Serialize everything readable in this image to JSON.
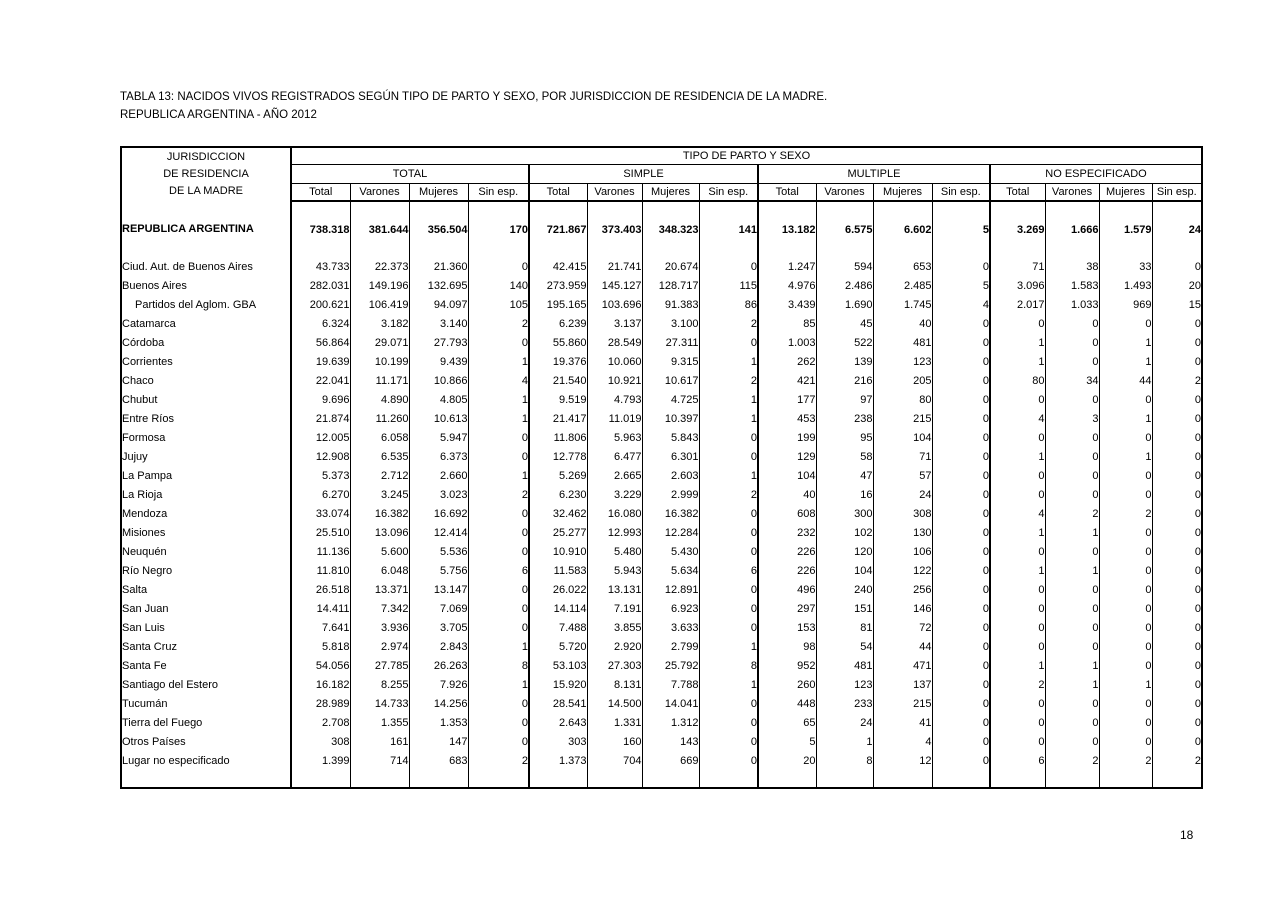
{
  "title": {
    "line1": "TABLA 13: NACIDOS VIVOS REGISTRADOS SEGÚN TIPO DE PARTO Y SEXO, POR JURISDICCION  DE RESIDENCIA DE LA MADRE.",
    "line2": "REPUBLICA ARGENTINA  -  AÑO 2012"
  },
  "page_number": "18",
  "table": {
    "row_header": {
      "lines": [
        "JURISDICCION",
        "DE RESIDENCIA",
        "DE LA MADRE"
      ]
    },
    "col_header": "TIPO DE PARTO Y SEXO",
    "groups": [
      "TOTAL",
      "SIMPLE",
      "MULTIPLE",
      "NO ESPECIFICADO"
    ],
    "subcolumns": [
      "Total",
      "Varones",
      "Mujeres",
      "Sin esp."
    ],
    "total_row": {
      "name": "REPUBLICA ARGENTINA",
      "values": [
        "738.318",
        "381.644",
        "356.504",
        "170",
        "721.867",
        "373.403",
        "348.323",
        "141",
        "13.182",
        "6.575",
        "6.602",
        "5",
        "3.269",
        "1.666",
        "1.579",
        "24"
      ]
    },
    "rows": [
      {
        "name": "Ciud. Aut. de  Buenos Aires",
        "indent": false,
        "values": [
          "43.733",
          "22.373",
          "21.360",
          "0",
          "42.415",
          "21.741",
          "20.674",
          "0",
          "1.247",
          "594",
          "653",
          "0",
          "71",
          "38",
          "33",
          "0"
        ]
      },
      {
        "name": "Buenos Aires",
        "indent": false,
        "values": [
          "282.031",
          "149.196",
          "132.695",
          "140",
          "273.959",
          "145.127",
          "128.717",
          "115",
          "4.976",
          "2.486",
          "2.485",
          "5",
          "3.096",
          "1.583",
          "1.493",
          "20"
        ]
      },
      {
        "name": "Partidos del Aglom. GBA",
        "indent": true,
        "values": [
          "200.621",
          "106.419",
          "94.097",
          "105",
          "195.165",
          "103.696",
          "91.383",
          "86",
          "3.439",
          "1.690",
          "1.745",
          "4",
          "2.017",
          "1.033",
          "969",
          "15"
        ]
      },
      {
        "name": "Catamarca",
        "indent": false,
        "values": [
          "6.324",
          "3.182",
          "3.140",
          "2",
          "6.239",
          "3.137",
          "3.100",
          "2",
          "85",
          "45",
          "40",
          "0",
          "0",
          "0",
          "0",
          "0"
        ]
      },
      {
        "name": "Córdoba",
        "indent": false,
        "values": [
          "56.864",
          "29.071",
          "27.793",
          "0",
          "55.860",
          "28.549",
          "27.311",
          "0",
          "1.003",
          "522",
          "481",
          "0",
          "1",
          "0",
          "1",
          "0"
        ]
      },
      {
        "name": "Corrientes",
        "indent": false,
        "values": [
          "19.639",
          "10.199",
          "9.439",
          "1",
          "19.376",
          "10.060",
          "9.315",
          "1",
          "262",
          "139",
          "123",
          "0",
          "1",
          "0",
          "1",
          "0"
        ]
      },
      {
        "name": "Chaco",
        "indent": false,
        "values": [
          "22.041",
          "11.171",
          "10.866",
          "4",
          "21.540",
          "10.921",
          "10.617",
          "2",
          "421",
          "216",
          "205",
          "0",
          "80",
          "34",
          "44",
          "2"
        ]
      },
      {
        "name": "Chubut",
        "indent": false,
        "values": [
          "9.696",
          "4.890",
          "4.805",
          "1",
          "9.519",
          "4.793",
          "4.725",
          "1",
          "177",
          "97",
          "80",
          "0",
          "0",
          "0",
          "0",
          "0"
        ]
      },
      {
        "name": "Entre Ríos",
        "indent": false,
        "values": [
          "21.874",
          "11.260",
          "10.613",
          "1",
          "21.417",
          "11.019",
          "10.397",
          "1",
          "453",
          "238",
          "215",
          "0",
          "4",
          "3",
          "1",
          "0"
        ]
      },
      {
        "name": "Formosa",
        "indent": false,
        "values": [
          "12.005",
          "6.058",
          "5.947",
          "0",
          "11.806",
          "5.963",
          "5.843",
          "0",
          "199",
          "95",
          "104",
          "0",
          "0",
          "0",
          "0",
          "0"
        ]
      },
      {
        "name": "Jujuy",
        "indent": false,
        "values": [
          "12.908",
          "6.535",
          "6.373",
          "0",
          "12.778",
          "6.477",
          "6.301",
          "0",
          "129",
          "58",
          "71",
          "0",
          "1",
          "0",
          "1",
          "0"
        ]
      },
      {
        "name": "La Pampa",
        "indent": false,
        "values": [
          "5.373",
          "2.712",
          "2.660",
          "1",
          "5.269",
          "2.665",
          "2.603",
          "1",
          "104",
          "47",
          "57",
          "0",
          "0",
          "0",
          "0",
          "0"
        ]
      },
      {
        "name": "La Rioja",
        "indent": false,
        "values": [
          "6.270",
          "3.245",
          "3.023",
          "2",
          "6.230",
          "3.229",
          "2.999",
          "2",
          "40",
          "16",
          "24",
          "0",
          "0",
          "0",
          "0",
          "0"
        ]
      },
      {
        "name": "Mendoza",
        "indent": false,
        "values": [
          "33.074",
          "16.382",
          "16.692",
          "0",
          "32.462",
          "16.080",
          "16.382",
          "0",
          "608",
          "300",
          "308",
          "0",
          "4",
          "2",
          "2",
          "0"
        ]
      },
      {
        "name": "Misiones",
        "indent": false,
        "values": [
          "25.510",
          "13.096",
          "12.414",
          "0",
          "25.277",
          "12.993",
          "12.284",
          "0",
          "232",
          "102",
          "130",
          "0",
          "1",
          "1",
          "0",
          "0"
        ]
      },
      {
        "name": "Neuquén",
        "indent": false,
        "values": [
          "11.136",
          "5.600",
          "5.536",
          "0",
          "10.910",
          "5.480",
          "5.430",
          "0",
          "226",
          "120",
          "106",
          "0",
          "0",
          "0",
          "0",
          "0"
        ]
      },
      {
        "name": "Río Negro",
        "indent": false,
        "values": [
          "11.810",
          "6.048",
          "5.756",
          "6",
          "11.583",
          "5.943",
          "5.634",
          "6",
          "226",
          "104",
          "122",
          "0",
          "1",
          "1",
          "0",
          "0"
        ]
      },
      {
        "name": "Salta",
        "indent": false,
        "values": [
          "26.518",
          "13.371",
          "13.147",
          "0",
          "26.022",
          "13.131",
          "12.891",
          "0",
          "496",
          "240",
          "256",
          "0",
          "0",
          "0",
          "0",
          "0"
        ]
      },
      {
        "name": "San Juan",
        "indent": false,
        "values": [
          "14.411",
          "7.342",
          "7.069",
          "0",
          "14.114",
          "7.191",
          "6.923",
          "0",
          "297",
          "151",
          "146",
          "0",
          "0",
          "0",
          "0",
          "0"
        ]
      },
      {
        "name": "San Luis",
        "indent": false,
        "values": [
          "7.641",
          "3.936",
          "3.705",
          "0",
          "7.488",
          "3.855",
          "3.633",
          "0",
          "153",
          "81",
          "72",
          "0",
          "0",
          "0",
          "0",
          "0"
        ]
      },
      {
        "name": "Santa Cruz",
        "indent": false,
        "values": [
          "5.818",
          "2.974",
          "2.843",
          "1",
          "5.720",
          "2.920",
          "2.799",
          "1",
          "98",
          "54",
          "44",
          "0",
          "0",
          "0",
          "0",
          "0"
        ]
      },
      {
        "name": "Santa Fe",
        "indent": false,
        "values": [
          "54.056",
          "27.785",
          "26.263",
          "8",
          "53.103",
          "27.303",
          "25.792",
          "8",
          "952",
          "481",
          "471",
          "0",
          "1",
          "1",
          "0",
          "0"
        ]
      },
      {
        "name": "Santiago del Estero",
        "indent": false,
        "values": [
          "16.182",
          "8.255",
          "7.926",
          "1",
          "15.920",
          "8.131",
          "7.788",
          "1",
          "260",
          "123",
          "137",
          "0",
          "2",
          "1",
          "1",
          "0"
        ]
      },
      {
        "name": "Tucumán",
        "indent": false,
        "values": [
          "28.989",
          "14.733",
          "14.256",
          "0",
          "28.541",
          "14.500",
          "14.041",
          "0",
          "448",
          "233",
          "215",
          "0",
          "0",
          "0",
          "0",
          "0"
        ]
      },
      {
        "name": "Tierra del Fuego",
        "indent": false,
        "values": [
          "2.708",
          "1.355",
          "1.353",
          "0",
          "2.643",
          "1.331",
          "1.312",
          "0",
          "65",
          "24",
          "41",
          "0",
          "0",
          "0",
          "0",
          "0"
        ]
      },
      {
        "name": "Otros Países",
        "indent": false,
        "values": [
          "308",
          "161",
          "147",
          "0",
          "303",
          "160",
          "143",
          "0",
          "5",
          "1",
          "4",
          "0",
          "0",
          "0",
          "0",
          "0"
        ]
      },
      {
        "name": "Lugar no especificado",
        "indent": false,
        "values": [
          "1.399",
          "714",
          "683",
          "2",
          "1.373",
          "704",
          "669",
          "0",
          "20",
          "8",
          "12",
          "0",
          "6",
          "2",
          "2",
          "2"
        ]
      }
    ]
  }
}
